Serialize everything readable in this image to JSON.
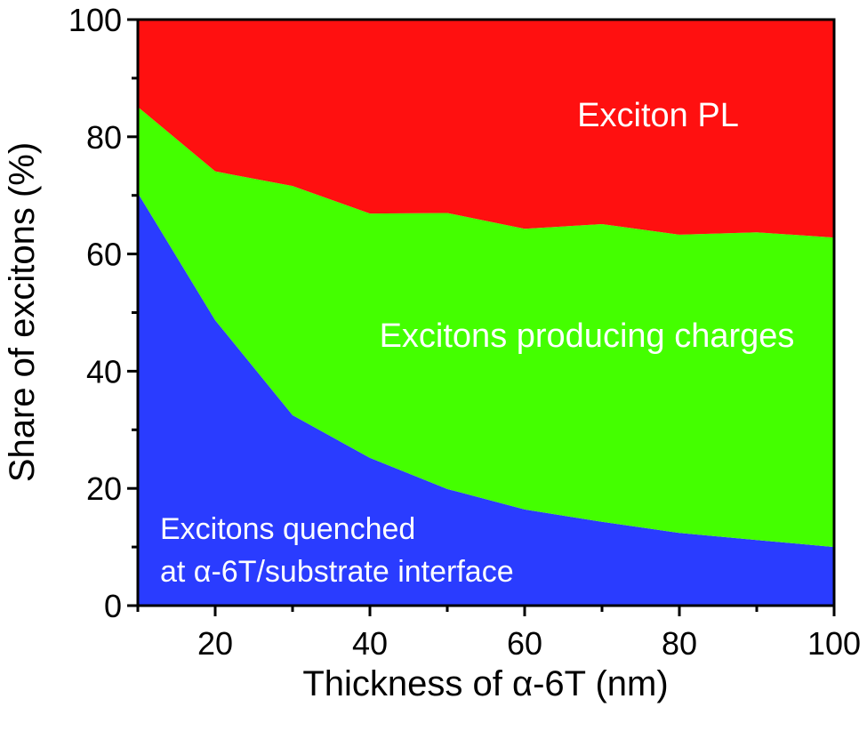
{
  "chart_data": {
    "type": "area",
    "stacked": true,
    "xlabel": "Thickness of α-6T (nm)",
    "ylabel": "Share of excitons (%)",
    "xlim": [
      10,
      100
    ],
    "ylim": [
      0,
      100
    ],
    "xticks": [
      20,
      40,
      60,
      80,
      100
    ],
    "yticks": [
      0,
      20,
      40,
      60,
      80,
      100
    ],
    "grid": false,
    "x": [
      10,
      20,
      30,
      40,
      50,
      60,
      70,
      80,
      90,
      100
    ],
    "series": [
      {
        "name": "Excitons quenched at α-6T/substrate interface",
        "label_lines": [
          "Excitons quenched",
          "at α-6T/substrate interface"
        ],
        "color": "#2a3cff",
        "values": [
          70.4,
          48.7,
          32.5,
          25.2,
          19.9,
          16.4,
          14.3,
          12.4,
          11.2,
          10.0
        ]
      },
      {
        "name": "Excitons producing charges",
        "color": "#44ff00",
        "values": [
          14.7,
          25.4,
          39.1,
          41.7,
          47.1,
          47.9,
          50.8,
          50.9,
          52.5,
          52.8
        ]
      },
      {
        "name": "Exciton PL",
        "color": "#ff1010",
        "values": [
          14.9,
          25.9,
          28.4,
          33.1,
          33.0,
          35.7,
          34.9,
          36.7,
          36.3,
          37.2
        ]
      }
    ]
  }
}
